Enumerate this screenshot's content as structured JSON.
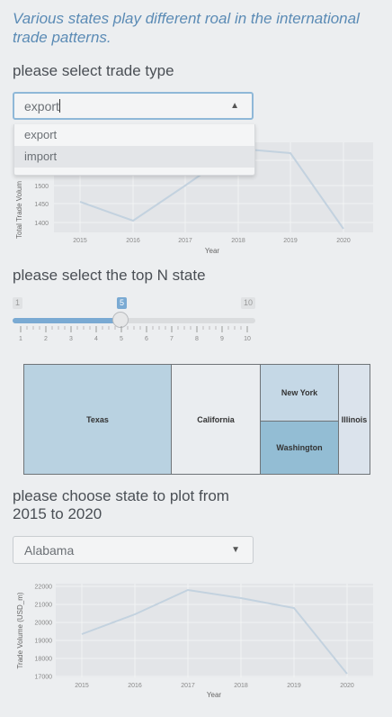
{
  "intro": "Various states play different roal in the international trade patterns.",
  "trade_type": {
    "label": "please select trade type",
    "value": "export",
    "options": [
      "export",
      "import"
    ]
  },
  "top_chart": {
    "type": "line",
    "ylabel": "Total Trade Volum",
    "xlabel": "Year",
    "x_ticks": [
      "2015",
      "2016",
      "2017",
      "2018",
      "2019",
      "2020"
    ],
    "y_ticks": [
      "1400",
      "1450",
      "1500"
    ],
    "line_color": "#c3d2df"
  },
  "topn": {
    "label": "please select the top N state",
    "min": "1",
    "max": "10",
    "value": "5",
    "ticks": [
      "1",
      "2",
      "3",
      "4",
      "5",
      "6",
      "7",
      "8",
      "9",
      "10"
    ]
  },
  "treemap": {
    "cells": [
      {
        "name": "Texas",
        "color": "#b9d2e1"
      },
      {
        "name": "California",
        "color": "#eaedf0"
      },
      {
        "name": "New York",
        "color": "#c5d8e6"
      },
      {
        "name": "Washington",
        "color": "#93bdd4"
      },
      {
        "name": "Illinois",
        "color": "#dbe3ec"
      }
    ]
  },
  "state_select": {
    "label_line1": "please choose state to plot from",
    "label_line2": "2015 to 2020",
    "value": "Alabama"
  },
  "chart_data": {
    "type": "line",
    "title": "",
    "xlabel": "Year",
    "ylabel": "Trade Volume (USD_m)",
    "x": [
      2015,
      2016,
      2017,
      2018,
      2019,
      2020
    ],
    "series": [
      {
        "values": [
          19350,
          20450,
          21800,
          21350,
          20800,
          17150
        ]
      }
    ],
    "ylim": [
      16950,
      22150
    ],
    "y_ticks": [
      17000,
      18000,
      19000,
      20000,
      21000,
      22000
    ],
    "grid": true,
    "line_color": "#c3d2df"
  }
}
